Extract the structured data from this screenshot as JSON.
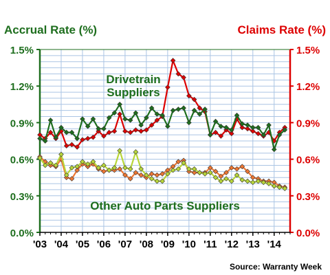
{
  "chart_data": {
    "type": "line",
    "title": "",
    "left_axis_title": "Accrual Rate (%)",
    "right_axis_title": "Claims Rate (%)",
    "source": "Source: Warranty Week",
    "ylim": [
      0,
      1.5
    ],
    "y_ticks": [
      0,
      0.3,
      0.6,
      0.9,
      1.2,
      1.5
    ],
    "y_tick_labels": [
      "0.0%",
      "0.3%",
      "0.6%",
      "0.9%",
      "1.2%",
      "1.5%"
    ],
    "x_range": [
      2003,
      2014.75
    ],
    "x_ticks": [
      2003,
      2004,
      2005,
      2006,
      2007,
      2008,
      2009,
      2010,
      2011,
      2012,
      2013,
      2014
    ],
    "x_tick_labels": [
      "'03",
      "'04",
      "'05",
      "'06",
      "'07",
      "'08",
      "'09",
      "'10",
      "'11",
      "'12",
      "'13",
      "'14"
    ],
    "grid": true,
    "annotations": [
      {
        "text": "Drivetrain",
        "group": "drivetrain"
      },
      {
        "text": "Suppliers",
        "group": "drivetrain"
      },
      {
        "text": "Other Auto Parts Suppliers",
        "group": "other"
      }
    ],
    "colors": {
      "accrual_axis": "#1e6e1e",
      "claims_axis": "#dd0000",
      "drivetrain_accrual": "#1e6e1e",
      "drivetrain_claims": "#dd0000",
      "other_accrual": "#b8d63a",
      "other_claims": "#ee7733",
      "grid": "#aac4e4",
      "plot_border": "#1e6e1e"
    },
    "x": [
      2003.0,
      2003.25,
      2003.5,
      2003.75,
      2004.0,
      2004.25,
      2004.5,
      2004.75,
      2005.0,
      2005.25,
      2005.5,
      2005.75,
      2006.0,
      2006.25,
      2006.5,
      2006.75,
      2007.0,
      2007.25,
      2007.5,
      2007.75,
      2008.0,
      2008.25,
      2008.5,
      2008.75,
      2009.0,
      2009.25,
      2009.5,
      2009.75,
      2010.0,
      2010.25,
      2010.5,
      2010.75,
      2011.0,
      2011.25,
      2011.5,
      2011.75,
      2012.0,
      2012.25,
      2012.5,
      2012.75,
      2013.0,
      2013.25,
      2013.5,
      2013.75,
      2014.0,
      2014.25,
      2014.5
    ],
    "series": [
      {
        "name": "Drivetrain Suppliers",
        "metric": "accrual",
        "color_key": "drivetrain_accrual",
        "values": [
          0.77,
          0.75,
          0.92,
          0.78,
          0.86,
          0.82,
          0.82,
          0.77,
          0.93,
          0.87,
          0.93,
          0.85,
          0.85,
          0.94,
          0.98,
          1.05,
          0.93,
          0.92,
          0.98,
          0.88,
          0.94,
          1.02,
          0.97,
          0.96,
          0.87,
          1.0,
          1.01,
          1.02,
          0.9,
          1.0,
          0.97,
          1.01,
          0.8,
          0.91,
          0.87,
          0.86,
          0.84,
          0.96,
          0.89,
          0.88,
          0.86,
          0.86,
          0.8,
          0.88,
          0.68,
          0.8,
          0.84
        ]
      },
      {
        "name": "Drivetrain Suppliers",
        "metric": "claims",
        "color_key": "drivetrain_claims",
        "values": [
          0.8,
          0.77,
          0.82,
          0.77,
          0.83,
          0.71,
          0.72,
          0.7,
          0.76,
          0.77,
          0.78,
          0.83,
          0.79,
          0.82,
          0.83,
          0.97,
          0.83,
          0.82,
          0.84,
          0.83,
          0.84,
          0.88,
          0.92,
          0.95,
          1.19,
          1.41,
          1.3,
          1.27,
          1.12,
          1.09,
          1.02,
          0.99,
          0.8,
          0.82,
          0.79,
          0.84,
          0.81,
          0.93,
          0.86,
          0.85,
          0.83,
          0.81,
          0.79,
          0.82,
          0.75,
          0.82,
          0.86
        ]
      },
      {
        "name": "Other Auto Parts Suppliers",
        "metric": "accrual",
        "color_key": "other_accrual",
        "values": [
          0.61,
          0.55,
          0.57,
          0.55,
          0.64,
          0.47,
          0.53,
          0.54,
          0.58,
          0.56,
          0.58,
          0.53,
          0.55,
          0.51,
          0.53,
          0.67,
          0.53,
          0.52,
          0.66,
          0.52,
          0.47,
          0.44,
          0.42,
          0.42,
          0.48,
          0.51,
          0.52,
          0.57,
          0.52,
          0.52,
          0.49,
          0.48,
          0.49,
          0.45,
          0.42,
          0.44,
          0.42,
          0.47,
          0.43,
          0.42,
          0.41,
          0.42,
          0.41,
          0.4,
          0.38,
          0.37,
          0.36
        ]
      },
      {
        "name": "Other Auto Parts Suppliers",
        "metric": "claims",
        "color_key": "other_claims",
        "values": [
          0.62,
          0.58,
          0.55,
          0.54,
          0.6,
          0.45,
          0.44,
          0.51,
          0.56,
          0.54,
          0.56,
          0.52,
          0.5,
          0.51,
          0.51,
          0.52,
          0.47,
          0.44,
          0.49,
          0.47,
          0.45,
          0.48,
          0.47,
          0.48,
          0.51,
          0.54,
          0.58,
          0.59,
          0.5,
          0.49,
          0.49,
          0.49,
          0.53,
          0.5,
          0.46,
          0.49,
          0.53,
          0.52,
          0.54,
          0.5,
          0.45,
          0.44,
          0.42,
          0.42,
          0.41,
          0.38,
          0.37
        ]
      }
    ]
  }
}
